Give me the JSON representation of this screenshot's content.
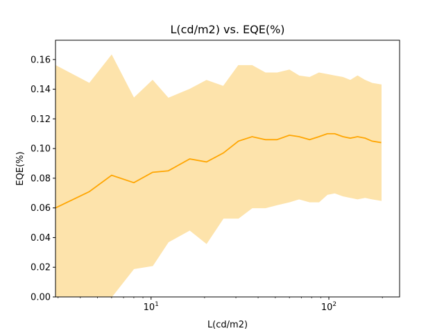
{
  "chart_data": {
    "type": "area",
    "title": "L(cd/m2) vs. EQE(%)",
    "xlabel": "L(cd/m2)",
    "ylabel": "EQE(%)",
    "x_scale": "log",
    "xlim": [
      2.9,
      250
    ],
    "ylim": [
      0,
      0.173
    ],
    "y_ticks": [
      "0.00",
      "0.02",
      "0.04",
      "0.06",
      "0.08",
      "0.10",
      "0.12",
      "0.14",
      "0.16"
    ],
    "x_ticks": [
      {
        "value": 10,
        "base": "10",
        "exp": "1"
      },
      {
        "value": 100,
        "base": "10",
        "exp": "2"
      }
    ],
    "grid": false,
    "series": [
      {
        "line_color": "#ffa500",
        "band_color": "#fde3ab",
        "points": [
          {
            "x": 2.9,
            "mean": 0.06,
            "upper": 0.156,
            "lower": 0.0
          },
          {
            "x": 4.5,
            "mean": 0.071,
            "upper": 0.144,
            "lower": 0.0
          },
          {
            "x": 6.0,
            "mean": 0.082,
            "upper": 0.163,
            "lower": 0.0
          },
          {
            "x": 8.0,
            "mean": 0.077,
            "upper": 0.134,
            "lower": 0.019
          },
          {
            "x": 10.2,
            "mean": 0.084,
            "upper": 0.146,
            "lower": 0.021
          },
          {
            "x": 12.5,
            "mean": 0.085,
            "upper": 0.134,
            "lower": 0.037
          },
          {
            "x": 16.5,
            "mean": 0.093,
            "upper": 0.14,
            "lower": 0.045
          },
          {
            "x": 20.5,
            "mean": 0.091,
            "upper": 0.146,
            "lower": 0.036
          },
          {
            "x": 25.5,
            "mean": 0.097,
            "upper": 0.142,
            "lower": 0.053
          },
          {
            "x": 31.0,
            "mean": 0.105,
            "upper": 0.156,
            "lower": 0.053
          },
          {
            "x": 37.0,
            "mean": 0.108,
            "upper": 0.156,
            "lower": 0.06
          },
          {
            "x": 44.0,
            "mean": 0.106,
            "upper": 0.151,
            "lower": 0.06
          },
          {
            "x": 51.0,
            "mean": 0.106,
            "upper": 0.151,
            "lower": 0.062
          },
          {
            "x": 60.0,
            "mean": 0.109,
            "upper": 0.153,
            "lower": 0.064
          },
          {
            "x": 68.0,
            "mean": 0.108,
            "upper": 0.149,
            "lower": 0.066
          },
          {
            "x": 78.0,
            "mean": 0.106,
            "upper": 0.148,
            "lower": 0.064
          },
          {
            "x": 88.0,
            "mean": 0.108,
            "upper": 0.151,
            "lower": 0.064
          },
          {
            "x": 98.0,
            "mean": 0.11,
            "upper": 0.15,
            "lower": 0.069
          },
          {
            "x": 108.0,
            "mean": 0.11,
            "upper": 0.149,
            "lower": 0.07
          },
          {
            "x": 120.0,
            "mean": 0.108,
            "upper": 0.148,
            "lower": 0.068
          },
          {
            "x": 132.0,
            "mean": 0.107,
            "upper": 0.146,
            "lower": 0.067
          },
          {
            "x": 145.0,
            "mean": 0.108,
            "upper": 0.149,
            "lower": 0.066
          },
          {
            "x": 160.0,
            "mean": 0.107,
            "upper": 0.146,
            "lower": 0.067
          },
          {
            "x": 175.0,
            "mean": 0.105,
            "upper": 0.144,
            "lower": 0.066
          },
          {
            "x": 197.0,
            "mean": 0.104,
            "upper": 0.143,
            "lower": 0.065
          }
        ]
      }
    ]
  }
}
